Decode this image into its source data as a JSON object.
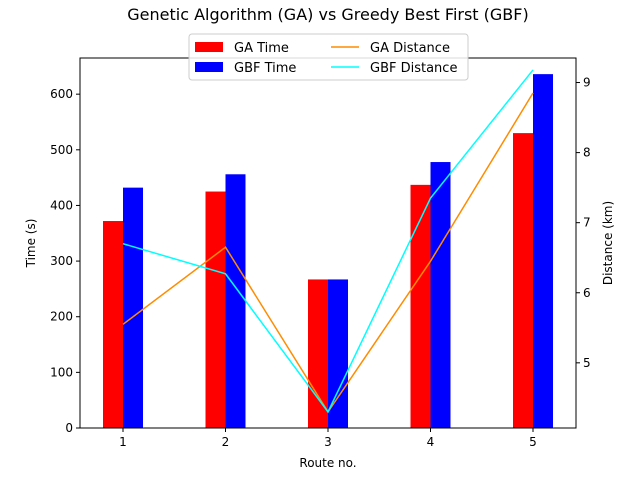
{
  "chart_data": {
    "type": "bar",
    "title": "Genetic Algorithm (GA) vs Greedy Best First (GBF)",
    "xlabel": "Route no.",
    "ylabel": "Time (s)",
    "y2label": "Distance (km)",
    "categories": [
      "1",
      "2",
      "3",
      "4",
      "5"
    ],
    "ylim": [
      0,
      665
    ],
    "y2lim": [
      4.07,
      9.35
    ],
    "yticks": [
      0,
      100,
      200,
      300,
      400,
      500,
      600
    ],
    "y2ticks": [
      5,
      6,
      7,
      8,
      9
    ],
    "legend_position": "upper-center",
    "bar_series": [
      {
        "name": "GA Time",
        "color": "#ff0000",
        "values": [
          372,
          425,
          267,
          437,
          530
        ]
      },
      {
        "name": "GBF Time",
        "color": "#0000ff",
        "values": [
          432,
          456,
          267,
          478,
          636
        ]
      }
    ],
    "line_series": [
      {
        "name": "GA Distance",
        "color": "#ff8c00",
        "values": [
          5.55,
          6.65,
          4.3,
          6.45,
          8.85
        ]
      },
      {
        "name": "GBF Distance",
        "color": "#00ffff",
        "values": [
          6.7,
          6.27,
          4.3,
          7.35,
          9.18
        ]
      }
    ]
  }
}
